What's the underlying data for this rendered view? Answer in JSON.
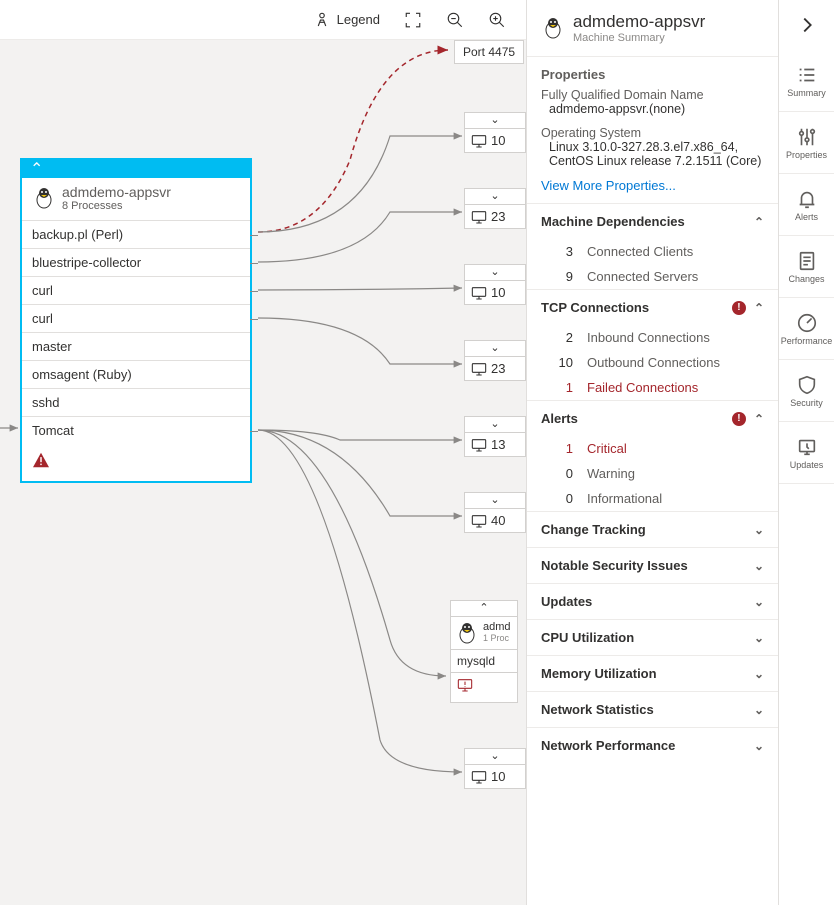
{
  "colors": {
    "accent": "#00bcf2",
    "border": "#e1dfdd",
    "text": "#323130",
    "muted": "#605e5c",
    "link": "#0078d4",
    "danger": "#a4262c",
    "bg": "#f3f2f1"
  },
  "toolbar": {
    "legend": "Legend"
  },
  "port_node": {
    "label": "Port 4475"
  },
  "main_node": {
    "title": "admdemo-appsvr",
    "subtitle": "8 Processes",
    "processes": [
      "backup.pl (Perl)",
      "bluestripe-collector",
      "curl",
      "curl",
      "master",
      "omsagent (Ruby)",
      "sshd",
      "Tomcat"
    ]
  },
  "minis": [
    {
      "count": "10"
    },
    {
      "count": "23"
    },
    {
      "count": "10"
    },
    {
      "count": "23"
    },
    {
      "count": "13"
    },
    {
      "count": "40"
    },
    {
      "count": "10"
    }
  ],
  "adm2": {
    "title": "admd",
    "subtitle": "1 Proc",
    "proc": "mysqld"
  },
  "panel": {
    "title": "admdemo-appsvr",
    "subtitle": "Machine Summary",
    "props_header": "Properties",
    "fqdn_label": "Fully Qualified Domain Name",
    "fqdn": "admdemo-appsvr.(none)",
    "os_label": "Operating System",
    "os": "Linux 3.10.0-327.28.3.el7.x86_64, CentOS Linux release 7.2.1511 (Core)",
    "more": "View More Properties...",
    "deps_header": "Machine Dependencies",
    "deps": [
      {
        "n": "3",
        "l": "Connected Clients"
      },
      {
        "n": "9",
        "l": "Connected Servers"
      }
    ],
    "tcp_header": "TCP Connections",
    "tcp": [
      {
        "n": "2",
        "l": "Inbound Connections"
      },
      {
        "n": "10",
        "l": "Outbound Connections"
      },
      {
        "n": "1",
        "l": "Failed Connections",
        "red": true
      }
    ],
    "alerts_header": "Alerts",
    "alerts": [
      {
        "n": "1",
        "l": "Critical",
        "red": true
      },
      {
        "n": "0",
        "l": "Warning"
      },
      {
        "n": "0",
        "l": "Informational"
      }
    ],
    "collapsed": [
      "Change Tracking",
      "Notable Security Issues",
      "Updates",
      "CPU Utilization",
      "Memory Utilization",
      "Network Statistics",
      "Network Performance"
    ]
  },
  "rail": [
    "Summary",
    "Properties",
    "Alerts",
    "Changes",
    "Performance",
    "Security",
    "Updates"
  ]
}
